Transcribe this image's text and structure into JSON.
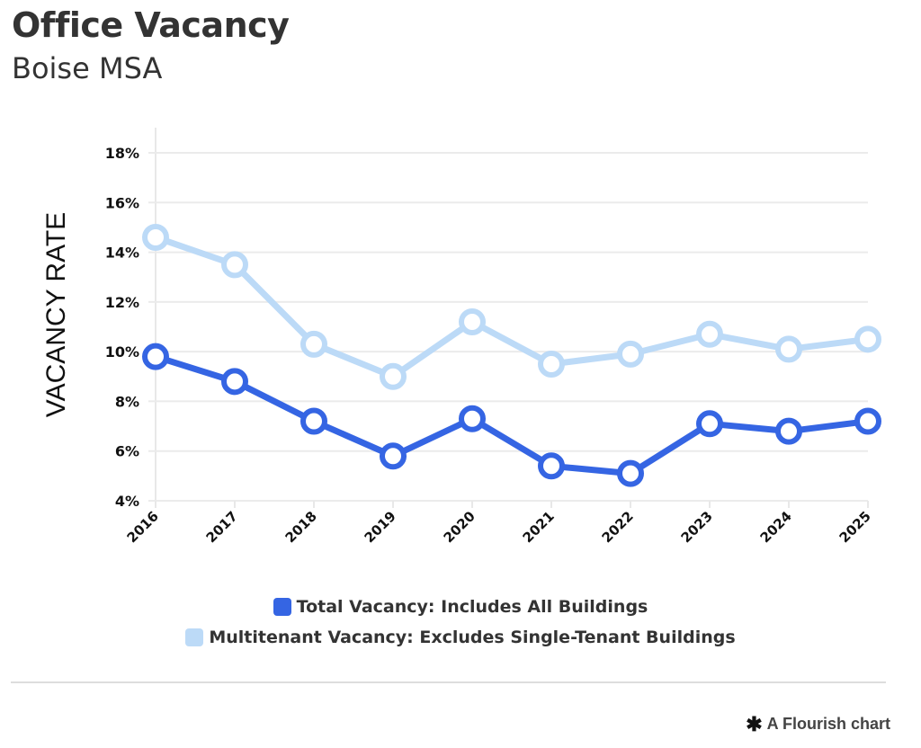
{
  "header": {
    "title": "Office Vacancy",
    "subtitle": "Boise MSA"
  },
  "chart_data": {
    "type": "line",
    "title": "Office Vacancy",
    "subtitle": "Boise MSA",
    "xlabel": "",
    "ylabel": "VACANCY RATE",
    "x": [
      "2016",
      "2017",
      "2018",
      "2019",
      "2020",
      "2021",
      "2022",
      "2023",
      "2024",
      "2025"
    ],
    "ylim": [
      4,
      18
    ],
    "yticks": [
      4,
      6,
      8,
      10,
      12,
      14,
      16,
      18
    ],
    "ytick_labels": [
      "4%",
      "6%",
      "8%",
      "10%",
      "12%",
      "14%",
      "16%",
      "18%"
    ],
    "grid": true,
    "legend_position": "bottom",
    "series": [
      {
        "name": "Total Vacancy: Includes All Buildings",
        "color": "#3565e3",
        "values": [
          9.8,
          8.8,
          7.2,
          5.8,
          7.3,
          5.4,
          5.1,
          7.1,
          6.8,
          7.2
        ]
      },
      {
        "name": "Multitenant Vacancy: Excludes Single-Tenant Buildings",
        "color": "#bcdaf7",
        "values": [
          14.6,
          13.5,
          10.3,
          9.0,
          11.2,
          9.5,
          9.9,
          10.7,
          10.1,
          10.5
        ]
      }
    ]
  },
  "footer": {
    "credit": "A Flourish chart",
    "credit_icon": "asterisk-icon"
  }
}
